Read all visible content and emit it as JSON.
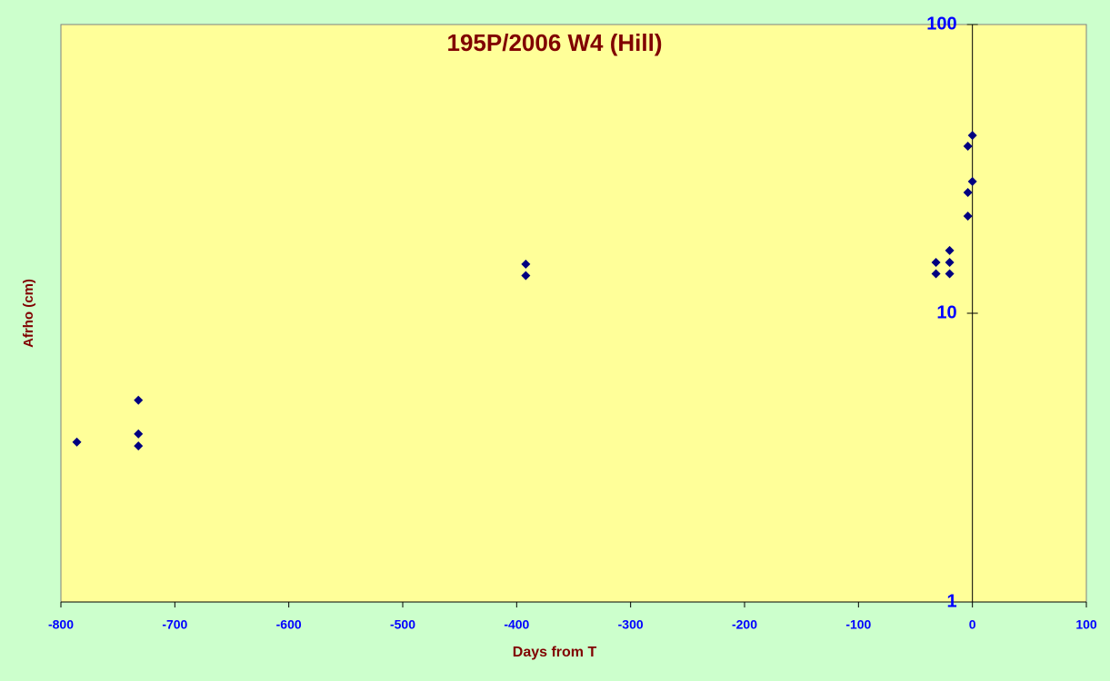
{
  "chart_data": {
    "type": "scatter",
    "title": "195P/2006 W4 (Hill)",
    "x_label": "Days from T",
    "y_label": "Afrho (cm)",
    "log_y": true,
    "grid": false,
    "series": [
      {
        "name": "Afrho",
        "color": "#000080",
        "x": [
          -786,
          -732,
          -732,
          -732,
          -392,
          -392,
          -32,
          -32,
          -20,
          -20,
          -20,
          -4,
          -4,
          -4,
          0,
          0
        ],
        "values": [
          3.58,
          5.0,
          3.82,
          3.47,
          14.8,
          13.5,
          15.0,
          13.7,
          16.5,
          15.0,
          13.7,
          21.7,
          26.2,
          37.9,
          28.6,
          41.3
        ]
      }
    ],
    "xlim": [
      -800,
      100
    ],
    "xticks": [
      -800,
      -700,
      -600,
      -500,
      -400,
      -300,
      -200,
      -100,
      0,
      100
    ],
    "ylim": [
      1,
      100
    ],
    "yticks": [
      1,
      10,
      100
    ]
  }
}
